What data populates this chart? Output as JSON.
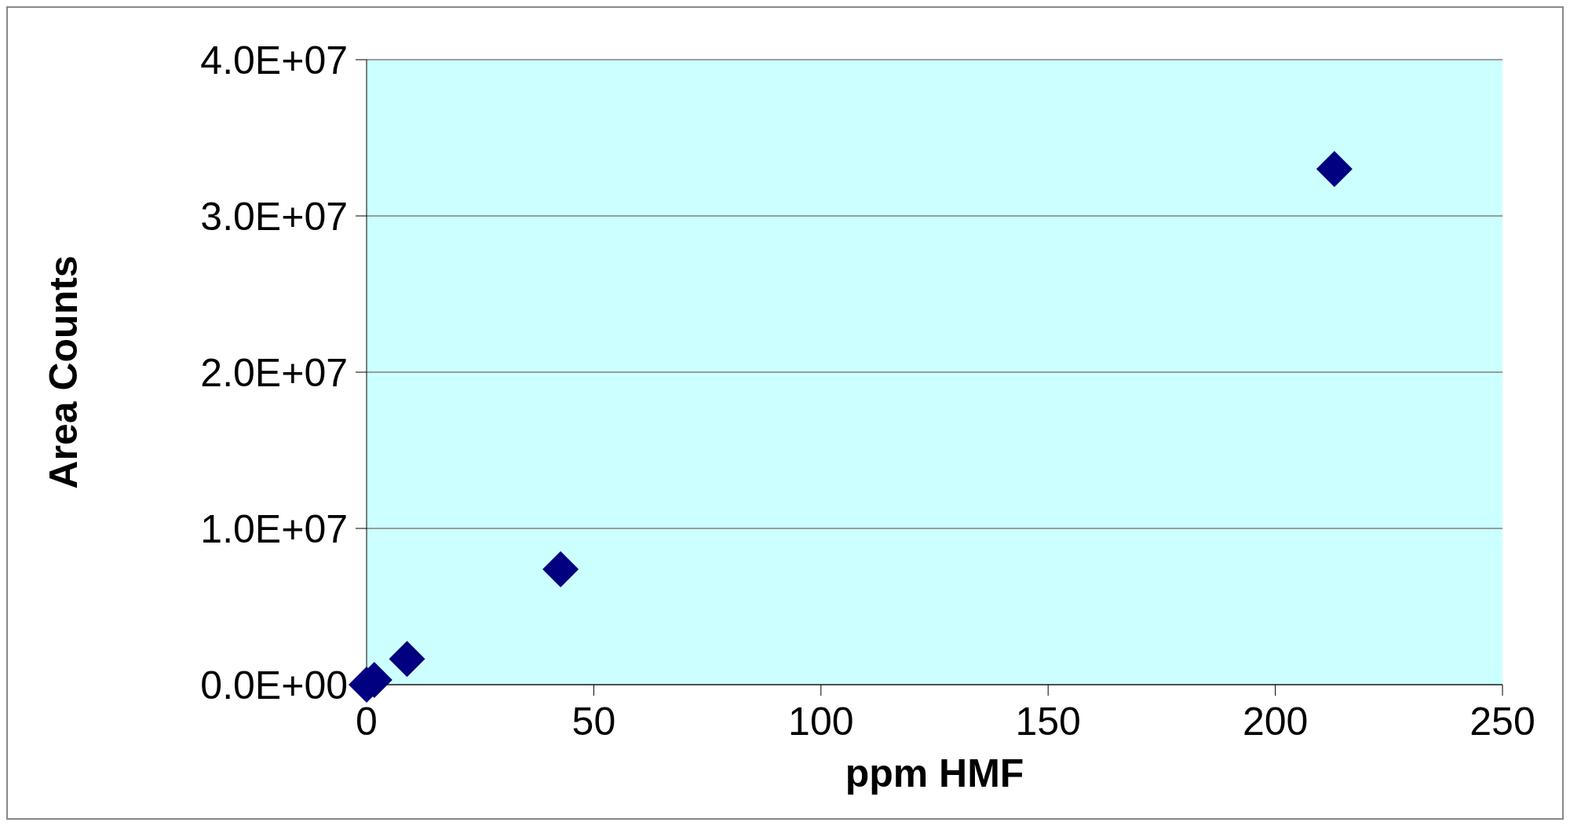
{
  "chart_data": {
    "type": "scatter",
    "xlabel": "ppm HMF",
    "ylabel": "Area Counts",
    "x": [
      0,
      1.7,
      8.9,
      42.7,
      213
    ],
    "series": [
      {
        "color": "#000080",
        "values": [
          0,
          300000,
          1650000,
          7390000,
          33000000
        ]
      }
    ],
    "xlim": [
      0,
      250
    ],
    "xticks": [
      0,
      50,
      100,
      150,
      200,
      250
    ],
    "ylim": [
      0,
      40000000
    ],
    "yticks": [
      {
        "value": 0,
        "label": "0.0E+00"
      },
      {
        "value": 10000000,
        "label": "1.0E+07"
      },
      {
        "value": 20000000,
        "label": "2.0E+07"
      },
      {
        "value": 30000000,
        "label": "3.0E+07"
      },
      {
        "value": 40000000,
        "label": "4.0E+07"
      }
    ],
    "grid": "y",
    "marker": "diamond",
    "legend": false
  }
}
